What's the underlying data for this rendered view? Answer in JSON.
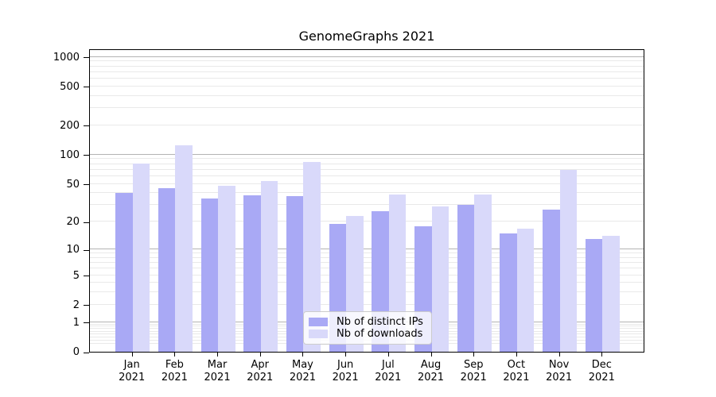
{
  "chart_data": {
    "type": "bar",
    "title": "GenomeGraphs 2021",
    "xlabel": "",
    "ylabel": "",
    "categories": [
      {
        "month": "Jan",
        "year": "2021"
      },
      {
        "month": "Feb",
        "year": "2021"
      },
      {
        "month": "Mar",
        "year": "2021"
      },
      {
        "month": "Apr",
        "year": "2021"
      },
      {
        "month": "May",
        "year": "2021"
      },
      {
        "month": "Jun",
        "year": "2021"
      },
      {
        "month": "Jul",
        "year": "2021"
      },
      {
        "month": "Aug",
        "year": "2021"
      },
      {
        "month": "Sep",
        "year": "2021"
      },
      {
        "month": "Oct",
        "year": "2021"
      },
      {
        "month": "Nov",
        "year": "2021"
      },
      {
        "month": "Dec",
        "year": "2021"
      }
    ],
    "series": [
      {
        "name": "Nb of distinct IPs",
        "slug": "distinct-ips",
        "color": "#a9a9f5",
        "values": [
          40,
          45,
          35,
          38,
          37,
          19,
          26,
          18,
          30,
          15,
          27,
          13
        ]
      },
      {
        "name": "Nb of downloads",
        "slug": "downloads",
        "color": "#d9d9fa",
        "values": [
          81,
          125,
          48,
          54,
          85,
          23,
          39,
          29,
          39,
          17,
          70,
          14
        ]
      }
    ],
    "y_axis": {
      "scale": "log10(value+1)",
      "range_min": 0,
      "range_max_tick": 1000,
      "ticks": [
        {
          "value": 1000,
          "label": "1000"
        },
        {
          "value": 500,
          "label": "500"
        },
        {
          "value": 200,
          "label": "200"
        },
        {
          "value": 100,
          "label": "100"
        },
        {
          "value": 50,
          "label": "50"
        },
        {
          "value": 20,
          "label": "20"
        },
        {
          "value": 10,
          "label": "10"
        },
        {
          "value": 5,
          "label": "5"
        },
        {
          "value": 2,
          "label": "2"
        },
        {
          "value": 1,
          "label": "1"
        },
        {
          "value": 0,
          "label": "0"
        }
      ]
    },
    "grid": {
      "on": true,
      "major_lines": [
        1,
        10,
        100,
        1000
      ],
      "minor_lines": [
        0.2,
        0.3,
        0.4,
        0.5,
        0.6,
        0.7,
        0.8,
        0.9,
        2,
        3,
        4,
        5,
        6,
        7,
        8,
        9,
        20,
        30,
        40,
        50,
        60,
        70,
        80,
        90,
        200,
        300,
        400,
        500,
        600,
        700,
        800,
        900
      ]
    },
    "legend": {
      "position": "inside-bottom-center"
    }
  }
}
